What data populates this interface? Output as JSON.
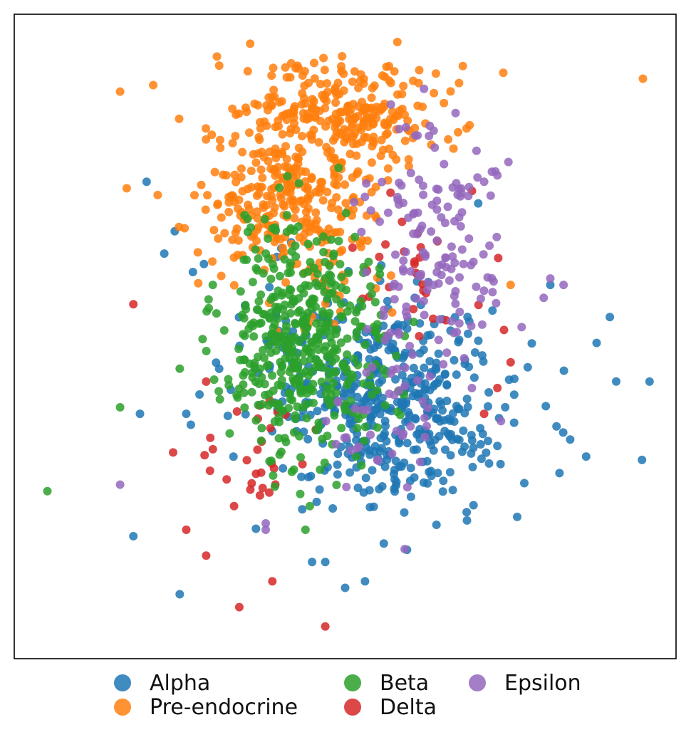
{
  "chart_data": {
    "type": "scatter",
    "title": "",
    "xlabel": "",
    "ylabel": "",
    "axes_ticks": "none",
    "grid": false,
    "legend_placement": "bottom",
    "xlim": [
      0,
      100
    ],
    "ylim": [
      0,
      100
    ],
    "series": [
      {
        "name": "Alpha",
        "color": "#1f77b4",
        "centers": [
          {
            "cx": 58,
            "cy": 39,
            "sx": 9,
            "sy": 8,
            "n": 380
          },
          {
            "cx": 47,
            "cy": 44,
            "sx": 10,
            "sy": 10,
            "n": 120
          }
        ],
        "outliers": [
          [
            20,
            74
          ],
          [
            96,
            43
          ],
          [
            90,
            53
          ],
          [
            88,
            49
          ],
          [
            81,
            58
          ],
          [
            84,
            34
          ],
          [
            18,
            19
          ],
          [
            25,
            10
          ],
          [
            50,
            11
          ],
          [
            53,
            12
          ],
          [
            47,
            15
          ],
          [
            45,
            15
          ],
          [
            76,
            22
          ],
          [
            73,
            33
          ],
          [
            26,
            38
          ],
          [
            28,
            41
          ],
          [
            19,
            38
          ],
          [
            27,
            60
          ]
        ]
      },
      {
        "name": "Pre-endocrine",
        "color": "#ff7f0e",
        "centers": [
          {
            "cx": 42,
            "cy": 72,
            "sx": 7,
            "sy": 8,
            "n": 360
          },
          {
            "cx": 52,
            "cy": 85,
            "sx": 7,
            "sy": 4,
            "n": 200
          }
        ],
        "outliers": [
          [
            16,
            88
          ],
          [
            21,
            89
          ],
          [
            17,
            73
          ],
          [
            95,
            90
          ],
          [
            75,
            58
          ]
        ]
      },
      {
        "name": "Beta",
        "color": "#2ca02c",
        "centers": [
          {
            "cx": 44,
            "cy": 49,
            "sx": 6,
            "sy": 9,
            "n": 460
          }
        ],
        "outliers": [
          [
            5,
            26
          ],
          [
            16,
            39
          ],
          [
            25,
            45
          ],
          [
            30,
            58
          ],
          [
            44,
            20
          ]
        ]
      },
      {
        "name": "Delta",
        "color": "#d62728",
        "centers": [
          {
            "cx": 62,
            "cy": 60,
            "sx": 5,
            "sy": 6,
            "n": 28
          },
          {
            "cx": 37,
            "cy": 32,
            "sx": 5,
            "sy": 6,
            "n": 28
          }
        ],
        "outliers": [
          [
            18,
            55
          ],
          [
            29,
            16
          ],
          [
            26,
            20
          ],
          [
            34,
            8
          ],
          [
            47,
            5
          ],
          [
            39,
            12
          ],
          [
            24,
            32
          ],
          [
            73,
            42
          ],
          [
            71,
            38
          ],
          [
            29,
            43
          ],
          [
            74,
            51
          ],
          [
            75,
            46
          ]
        ]
      },
      {
        "name": "Epsilon",
        "color": "#9467bd",
        "centers": [
          {
            "cx": 63,
            "cy": 64,
            "sx": 5,
            "sy": 10,
            "n": 150
          },
          {
            "cx": 57,
            "cy": 38,
            "sx": 5,
            "sy": 6,
            "n": 40
          }
        ],
        "outliers": [
          [
            16,
            27
          ],
          [
            38,
            21
          ],
          [
            38,
            20
          ],
          [
            59,
            17
          ],
          [
            81,
            59
          ],
          [
            83,
            58
          ],
          [
            80,
            56
          ],
          [
            71,
            74
          ],
          [
            73,
            75
          ],
          [
            67,
            72
          ]
        ]
      }
    ]
  },
  "legend": {
    "entries": [
      {
        "label": "Alpha",
        "color": "#1f77b4"
      },
      {
        "label": "Beta",
        "color": "#2ca02c"
      },
      {
        "label": "Epsilon",
        "color": "#9467bd"
      },
      {
        "label": "Pre-endocrine",
        "color": "#ff7f0e"
      },
      {
        "label": "Delta",
        "color": "#d62728"
      }
    ]
  }
}
